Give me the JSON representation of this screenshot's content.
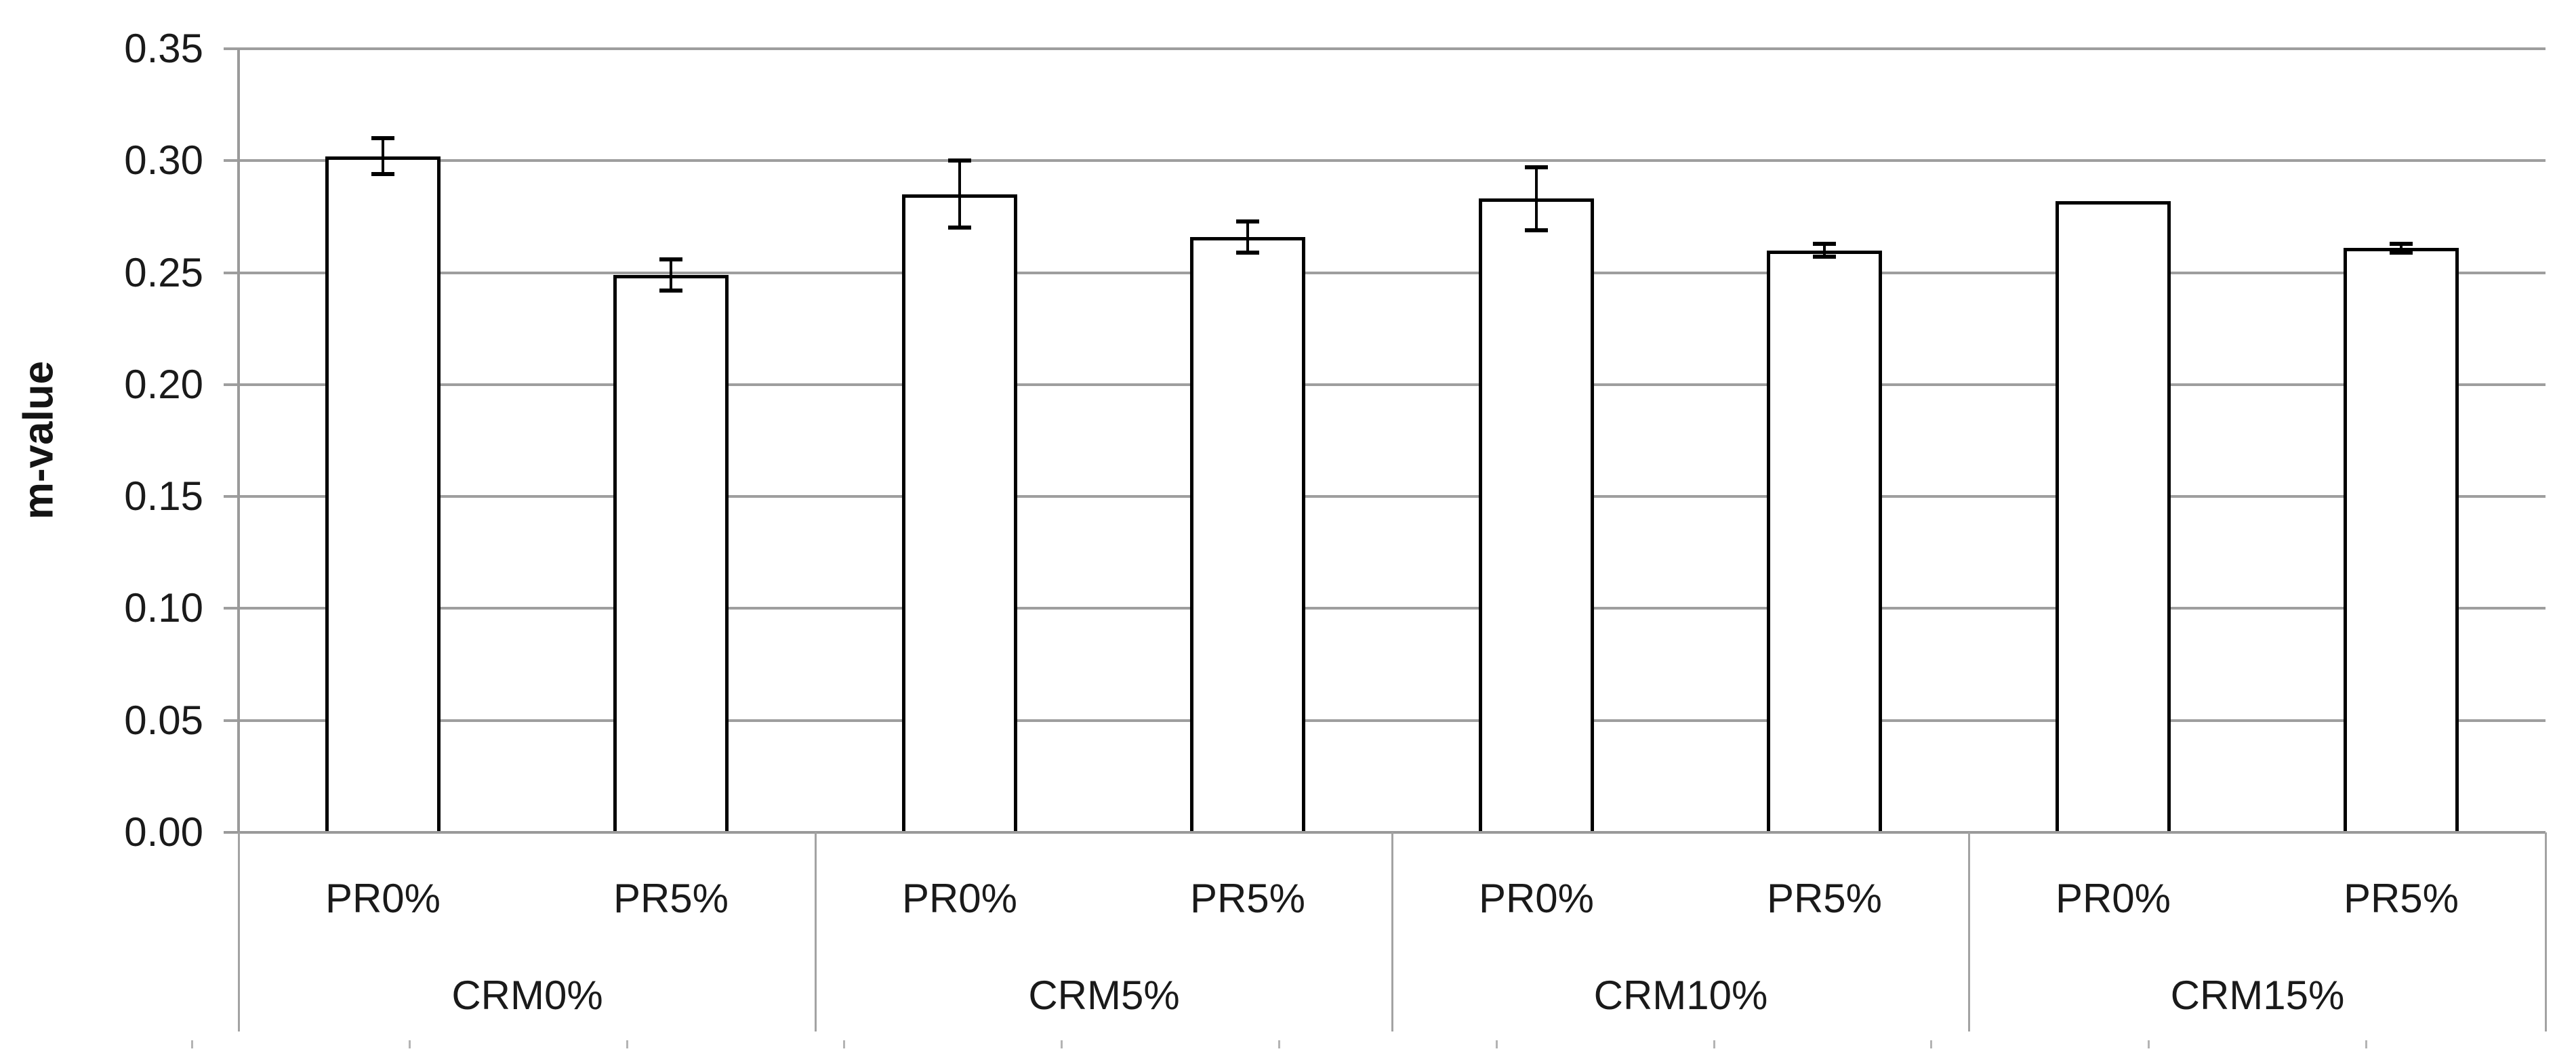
{
  "chart_data": {
    "type": "bar",
    "title": "",
    "ylabel": "m-value",
    "xlabel": "",
    "ylim": [
      0,
      0.35
    ],
    "ytick_step": 0.05,
    "ytick_labels": [
      "0.00",
      "0.05",
      "0.10",
      "0.15",
      "0.20",
      "0.25",
      "0.30",
      "0.35"
    ],
    "grid": true,
    "legend_position": "none",
    "error_bars": true,
    "bar_fill": "#ffffff",
    "bar_border_color": "#000000",
    "gridline_color": "#9e9e9e",
    "axis_color": "#9a9a9a",
    "separator_color": "#a3a3a3",
    "bottom_tick_color": "#b4b4b4",
    "text_color": "#1a1a1a",
    "groups": [
      {
        "label": "CRM0%",
        "bars": [
          {
            "label": "PR0%",
            "value": 0.302,
            "error": 0.008
          },
          {
            "label": "PR5%",
            "value": 0.249,
            "error": 0.007
          }
        ]
      },
      {
        "label": "CRM5%",
        "bars": [
          {
            "label": "PR0%",
            "value": 0.285,
            "error": 0.015
          },
          {
            "label": "PR5%",
            "value": 0.266,
            "error": 0.007
          }
        ]
      },
      {
        "label": "CRM10%",
        "bars": [
          {
            "label": "PR0%",
            "value": 0.283,
            "error": 0.014
          },
          {
            "label": "PR5%",
            "value": 0.26,
            "error": 0.003
          }
        ]
      },
      {
        "label": "CRM15%",
        "bars": [
          {
            "label": "PR0%",
            "value": 0.282,
            "error": 0
          },
          {
            "label": "PR5%",
            "value": 0.261,
            "error": 0.002
          }
        ]
      }
    ]
  }
}
